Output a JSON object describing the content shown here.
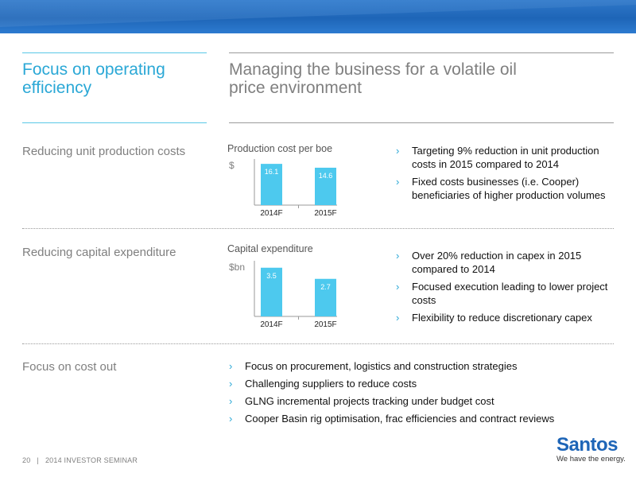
{
  "header": {
    "left_title": "Focus on operating efficiency",
    "right_title": "Managing the business for a volatile oil price environment"
  },
  "colors": {
    "accent": "#2ba8d6",
    "bar": "#4dc9ee",
    "brand": "#1e65b7"
  },
  "sections": [
    {
      "label": "Reducing unit production costs",
      "chart_title": "Production cost per boe",
      "bullets": [
        "Targeting 9% reduction in unit production costs in 2015 compared to 2014",
        "Fixed costs businesses (i.e. Cooper) beneficiaries of higher production volumes"
      ]
    },
    {
      "label": "Reducing capital expenditure",
      "chart_title": "Capital expenditure",
      "bullets": [
        "Over 20% reduction in capex in 2015 compared to 2014",
        "Focused execution leading to lower project costs",
        "Flexibility to reduce discretionary capex"
      ]
    },
    {
      "label": "Focus on cost out",
      "bullets": [
        "Focus on procurement, logistics and construction strategies",
        "Challenging suppliers to reduce costs",
        "GLNG incremental projects tracking under budget cost",
        "Cooper Basin rig optimisation, frac efficiencies and contract reviews"
      ]
    }
  ],
  "chart_data": [
    {
      "type": "bar",
      "title": "Production cost per boe",
      "ylabel": "$",
      "categories": [
        "2014F",
        "2015F"
      ],
      "values": [
        16.1,
        14.6
      ],
      "data_labels": [
        "16.1",
        "14.6"
      ],
      "ylim": [
        0,
        18
      ],
      "grid": false
    },
    {
      "type": "bar",
      "title": "Capital expenditure",
      "ylabel": "$bn",
      "categories": [
        "2014F",
        "2015F"
      ],
      "values": [
        3.5,
        2.7
      ],
      "data_labels": [
        "3.5",
        "2.7"
      ],
      "ylim": [
        0,
        4
      ],
      "grid": false
    }
  ],
  "footer": {
    "page_number": "20",
    "separator": "|",
    "text": "2014 INVESTOR SEMINAR"
  },
  "logo": {
    "brand": "Santos",
    "tagline": "We have the energy."
  }
}
